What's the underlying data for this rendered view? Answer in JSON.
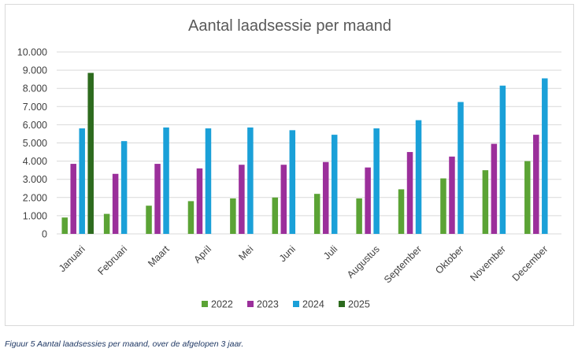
{
  "chart_data": {
    "type": "bar",
    "title": "Aantal laadsessie per maand",
    "xlabel": "",
    "ylabel": "",
    "ylim": [
      0,
      10000
    ],
    "yticks": [
      "0",
      "1.000",
      "2.000",
      "3.000",
      "4.000",
      "5.000",
      "6.000",
      "7.000",
      "8.000",
      "9.000",
      "10.000"
    ],
    "categories": [
      "Januari",
      "Februari",
      "Maart",
      "April",
      "Mei",
      "Juni",
      "Juli",
      "Augustus",
      "September",
      "Oktober",
      "November",
      "December"
    ],
    "series": [
      {
        "name": "2022",
        "color": "#5ba335",
        "values": [
          900,
          1100,
          1550,
          1800,
          1950,
          2000,
          2200,
          1950,
          2450,
          3050,
          3500,
          4000
        ]
      },
      {
        "name": "2023",
        "color": "#9b2f9b",
        "values": [
          3850,
          3300,
          3850,
          3600,
          3800,
          3800,
          3950,
          3650,
          4500,
          4250,
          4950,
          5450
        ]
      },
      {
        "name": "2024",
        "color": "#1aa0d8",
        "values": [
          5800,
          5100,
          5850,
          5800,
          5850,
          5700,
          5450,
          5800,
          6250,
          7250,
          8150,
          8550
        ]
      },
      {
        "name": "2025",
        "color": "#2d6b1e",
        "values": [
          8850,
          null,
          null,
          null,
          null,
          null,
          null,
          null,
          null,
          null,
          null,
          null
        ]
      }
    ],
    "grid": true,
    "legend": "bottom"
  },
  "caption": "Figuur 5 Aantal laadsessies per maand, over de afgelopen 3 jaar."
}
